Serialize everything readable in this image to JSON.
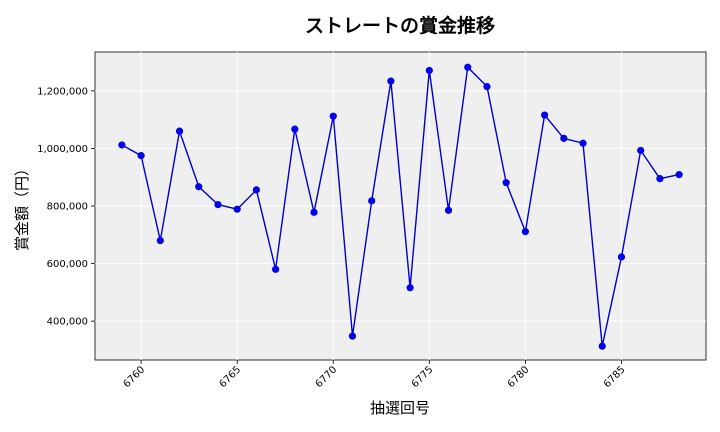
{
  "chart_data": {
    "type": "line",
    "title": "ストレートの賞金推移",
    "xlabel": "抽選回号",
    "ylabel": "賞金額（円）",
    "x_ticks": [
      6760,
      6765,
      6770,
      6775,
      6780,
      6785
    ],
    "x_tick_labels": [
      "6760",
      "6765",
      "6770",
      "6775",
      "6780",
      "6785"
    ],
    "y_ticks": [
      400000,
      600000,
      800000,
      1000000,
      1200000
    ],
    "y_tick_labels": [
      "400,000",
      "600,000",
      "800,000",
      "1,000,000",
      "1,200,000"
    ],
    "xlim": [
      6757.6,
      6789.4
    ],
    "ylim": [
      265000,
      1335000
    ],
    "grid": true,
    "colors": {
      "line": "#0000cc",
      "marker": "#0000ee",
      "plot_bg": "#efefef"
    },
    "x": [
      6759,
      6760,
      6761,
      6762,
      6763,
      6764,
      6765,
      6766,
      6767,
      6768,
      6769,
      6770,
      6771,
      6772,
      6773,
      6774,
      6775,
      6776,
      6777,
      6778,
      6779,
      6780,
      6781,
      6782,
      6783,
      6784,
      6785,
      6786,
      6787,
      6788
    ],
    "values": [
      1012000,
      975000,
      680000,
      1060000,
      867000,
      805000,
      789000,
      856000,
      580000,
      1067000,
      778000,
      1112000,
      348000,
      818000,
      1234000,
      516000,
      1271000,
      785000,
      1282000,
      1215000,
      881000,
      711000,
      1116000,
      1035000,
      1018000,
      313000,
      623000,
      993000,
      895000,
      909000
    ]
  }
}
